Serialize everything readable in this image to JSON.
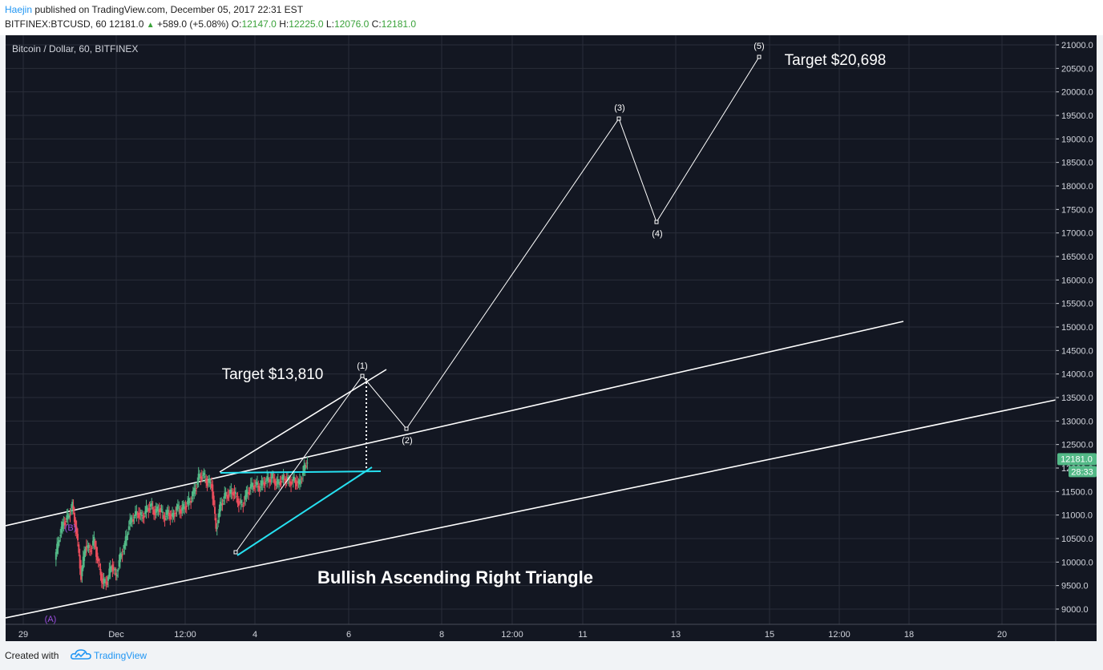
{
  "header": {
    "author": "Haejin",
    "published_text": " published on TradingView.com, December 05, 2017 22:31 EST",
    "symbol": "BITFINEX:BTCUSD, 60",
    "last": "12181.0",
    "change": "+589.0 (+5.08%)",
    "o_label": "O:",
    "o_value": "12147.0",
    "h_label": "H:",
    "h_value": "12225.0",
    "l_label": "L:",
    "l_value": "12076.0",
    "c_label": "C:",
    "c_value": "12181.0"
  },
  "footer": {
    "created_with": "Created with",
    "brand": "TradingView"
  },
  "colors": {
    "background": "#131722",
    "up": "#53b987",
    "down": "#eb4d5c",
    "line": "#ffffff",
    "triangle": "#26e0f0",
    "wave_ab": "#9c4fe0",
    "price_tag": "#53b987"
  },
  "chart_data": {
    "type": "candlestick",
    "title": "Bitcoin / Dollar, 60, BITFINEX",
    "ylim": [
      8780,
      21250
    ],
    "y_ticks": [
      "21000.0",
      "20500.0",
      "20000.0",
      "19500.0",
      "19000.0",
      "18500.0",
      "18000.0",
      "17500.0",
      "17000.0",
      "16500.0",
      "16000.0",
      "15500.0",
      "15000.0",
      "14500.0",
      "14000.0",
      "13500.0",
      "13000.0",
      "12500.0",
      "12000.0",
      "11500.0",
      "11000.0",
      "10500.0",
      "10000.0",
      "9500.0",
      "9000.0"
    ],
    "x_tick_labels": [
      "29",
      "Dec",
      "12:00",
      "4",
      "6",
      "8",
      "12:00",
      "11",
      "13",
      "15",
      "12:00",
      "18",
      "20"
    ],
    "last_price": "12181.0",
    "countdown": "28:33",
    "price_path": [
      [
        -12,
        10050
      ],
      [
        -11,
        10550
      ],
      [
        -10,
        10850
      ],
      [
        -9,
        10950
      ],
      [
        -8,
        11200
      ],
      [
        -7,
        10600
      ],
      [
        -6,
        9700
      ],
      [
        -5,
        10350
      ],
      [
        -4,
        10250
      ],
      [
        -3,
        10450
      ],
      [
        -2,
        9950
      ],
      [
        -1,
        9550
      ],
      [
        0,
        9600
      ],
      [
        1,
        9950
      ],
      [
        2,
        9700
      ],
      [
        3,
        10100
      ],
      [
        4,
        10350
      ],
      [
        5,
        10800
      ],
      [
        6,
        10950
      ],
      [
        7,
        11050
      ],
      [
        8,
        10950
      ],
      [
        9,
        11100
      ],
      [
        10,
        11200
      ],
      [
        11,
        11050
      ],
      [
        12,
        11150
      ],
      [
        13,
        10950
      ],
      [
        14,
        11050
      ],
      [
        15,
        10950
      ],
      [
        16,
        11150
      ],
      [
        17,
        11100
      ],
      [
        18,
        11200
      ],
      [
        19,
        11300
      ],
      [
        20,
        11500
      ],
      [
        21,
        11800
      ],
      [
        22,
        11850
      ],
      [
        23,
        11700
      ],
      [
        24,
        11650
      ],
      [
        25,
        10700
      ],
      [
        26,
        11200
      ],
      [
        27,
        11400
      ],
      [
        28,
        11450
      ],
      [
        29,
        11500
      ],
      [
        30,
        11300
      ],
      [
        31,
        11200
      ],
      [
        32,
        11450
      ],
      [
        33,
        11600
      ],
      [
        34,
        11650
      ],
      [
        35,
        11600
      ],
      [
        36,
        11700
      ],
      [
        37,
        11750
      ],
      [
        38,
        11800
      ],
      [
        39,
        11650
      ],
      [
        40,
        11750
      ],
      [
        41,
        11780
      ],
      [
        42,
        11700
      ],
      [
        43,
        11750
      ],
      [
        44,
        11650
      ],
      [
        45,
        11900
      ],
      [
        46,
        12181
      ]
    ],
    "annotations": {
      "wave_a": "(A)",
      "wave_b": "(B)",
      "w1": "(1)",
      "w2": "(2)",
      "w3": "(3)",
      "w4": "(4)",
      "w5": "(5)",
      "target_1": "Target $13,810",
      "target_2": "Target $20,698",
      "pattern": "Bullish Ascending Right Triangle"
    }
  }
}
